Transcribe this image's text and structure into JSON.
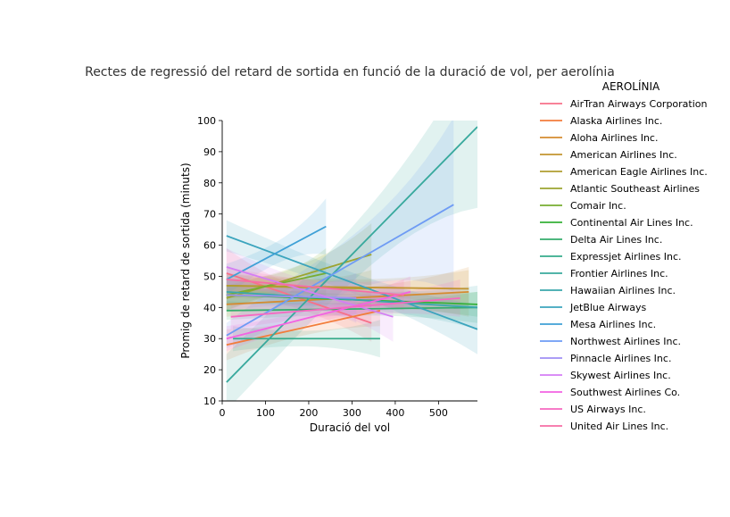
{
  "chart_data": {
    "type": "line",
    "title": "Rectes de regressió del retard de sortida en funció de la duració de vol, per aerolínia",
    "xlabel": "Duració del vol",
    "ylabel": "Promig de retard de sortida (minuts)",
    "xlim": [
      0,
      590
    ],
    "ylim": [
      10,
      100
    ],
    "xticks": [
      0,
      100,
      200,
      300,
      400,
      500
    ],
    "yticks": [
      10,
      20,
      30,
      40,
      50,
      60,
      70,
      80,
      90,
      100
    ],
    "grid": false,
    "legend_title": "AEROLÍNIA",
    "legend_position": "right",
    "series": [
      {
        "name": "AirTran Airways Corporation",
        "color": "#f77189",
        "x": [
          10,
          345
        ],
        "y": [
          51,
          35
        ],
        "ci": [
          8,
          6
        ]
      },
      {
        "name": "Alaska Airlines Inc.",
        "color": "#f27c3b",
        "x": [
          10,
          365
        ],
        "y": [
          28,
          39
        ],
        "ci": [
          5,
          5
        ]
      },
      {
        "name": "Aloha Airlines Inc.",
        "color": "#d58b31",
        "x": [
          10,
          570
        ],
        "y": [
          41,
          45
        ],
        "ci": [
          4,
          8
        ]
      },
      {
        "name": "American Airlines Inc.",
        "color": "#c39531",
        "x": [
          10,
          570
        ],
        "y": [
          47,
          46
        ],
        "ci": [
          4,
          6
        ]
      },
      {
        "name": "American Eagle Airlines Inc.",
        "color": "#b19e31",
        "x": [
          10,
          345
        ],
        "y": [
          47,
          46
        ],
        "ci": [
          4,
          6
        ]
      },
      {
        "name": "Atlantic Southeast Airlines",
        "color": "#9ca431",
        "x": [
          10,
          345
        ],
        "y": [
          43,
          57
        ],
        "ci": [
          4,
          10
        ]
      },
      {
        "name": "Comair Inc.",
        "color": "#77ad31",
        "x": [
          10,
          240
        ],
        "y": [
          44,
          51
        ],
        "ci": [
          5,
          8
        ]
      },
      {
        "name": "Continental Air Lines Inc.",
        "color": "#35b037",
        "x": [
          10,
          590
        ],
        "y": [
          44,
          41
        ],
        "ci": [
          3,
          4
        ]
      },
      {
        "name": "Delta Air Lines Inc.",
        "color": "#35ad6d",
        "x": [
          10,
          590
        ],
        "y": [
          39,
          40
        ],
        "ci": [
          3,
          5
        ]
      },
      {
        "name": "Expressjet Airlines Inc.",
        "color": "#36ab8b",
        "x": [
          25,
          365
        ],
        "y": [
          30,
          30
        ],
        "ci": [
          4,
          6
        ]
      },
      {
        "name": "Frontier Airlines Inc.",
        "color": "#38a99d",
        "x": [
          10,
          590
        ],
        "y": [
          16,
          98
        ],
        "ci": [
          9,
          26
        ]
      },
      {
        "name": "Hawaiian Airlines Inc.",
        "color": "#39a7ac",
        "x": [
          10,
          590
        ],
        "y": [
          45,
          40
        ],
        "ci": [
          4,
          7
        ]
      },
      {
        "name": "JetBlue Airways",
        "color": "#3ba4bd",
        "x": [
          10,
          590
        ],
        "y": [
          63,
          33
        ],
        "ci": [
          5,
          8
        ]
      },
      {
        "name": "Mesa Airlines Inc.",
        "color": "#3fa0d6",
        "x": [
          10,
          240
        ],
        "y": [
          49,
          66
        ],
        "ci": [
          5,
          9
        ]
      },
      {
        "name": "Northwest Airlines Inc.",
        "color": "#6e9bf4",
        "x": [
          10,
          535
        ],
        "y": [
          31,
          73
        ],
        "ci": [
          4,
          28
        ]
      },
      {
        "name": "Pinnacle Airlines Inc.",
        "color": "#a18ff5",
        "x": [
          10,
          310
        ],
        "y": [
          44,
          43
        ],
        "ci": [
          5,
          8
        ]
      },
      {
        "name": "Skywest Airlines Inc.",
        "color": "#d47ef4",
        "x": [
          10,
          395
        ],
        "y": [
          53,
          37
        ],
        "ci": [
          6,
          8
        ]
      },
      {
        "name": "Southwest Airlines Co.",
        "color": "#f363e2",
        "x": [
          10,
          435
        ],
        "y": [
          30,
          45
        ],
        "ci": [
          4,
          5
        ]
      },
      {
        "name": "US Airways Inc.",
        "color": "#f668c1",
        "x": [
          20,
          550
        ],
        "y": [
          37,
          43
        ],
        "ci": [
          4,
          6
        ]
      },
      {
        "name": "United Air Lines Inc.",
        "color": "#f66ea5",
        "x": [
          10,
          420
        ],
        "y": [
          49,
          44
        ],
        "ci": [
          4,
          5
        ]
      }
    ]
  }
}
